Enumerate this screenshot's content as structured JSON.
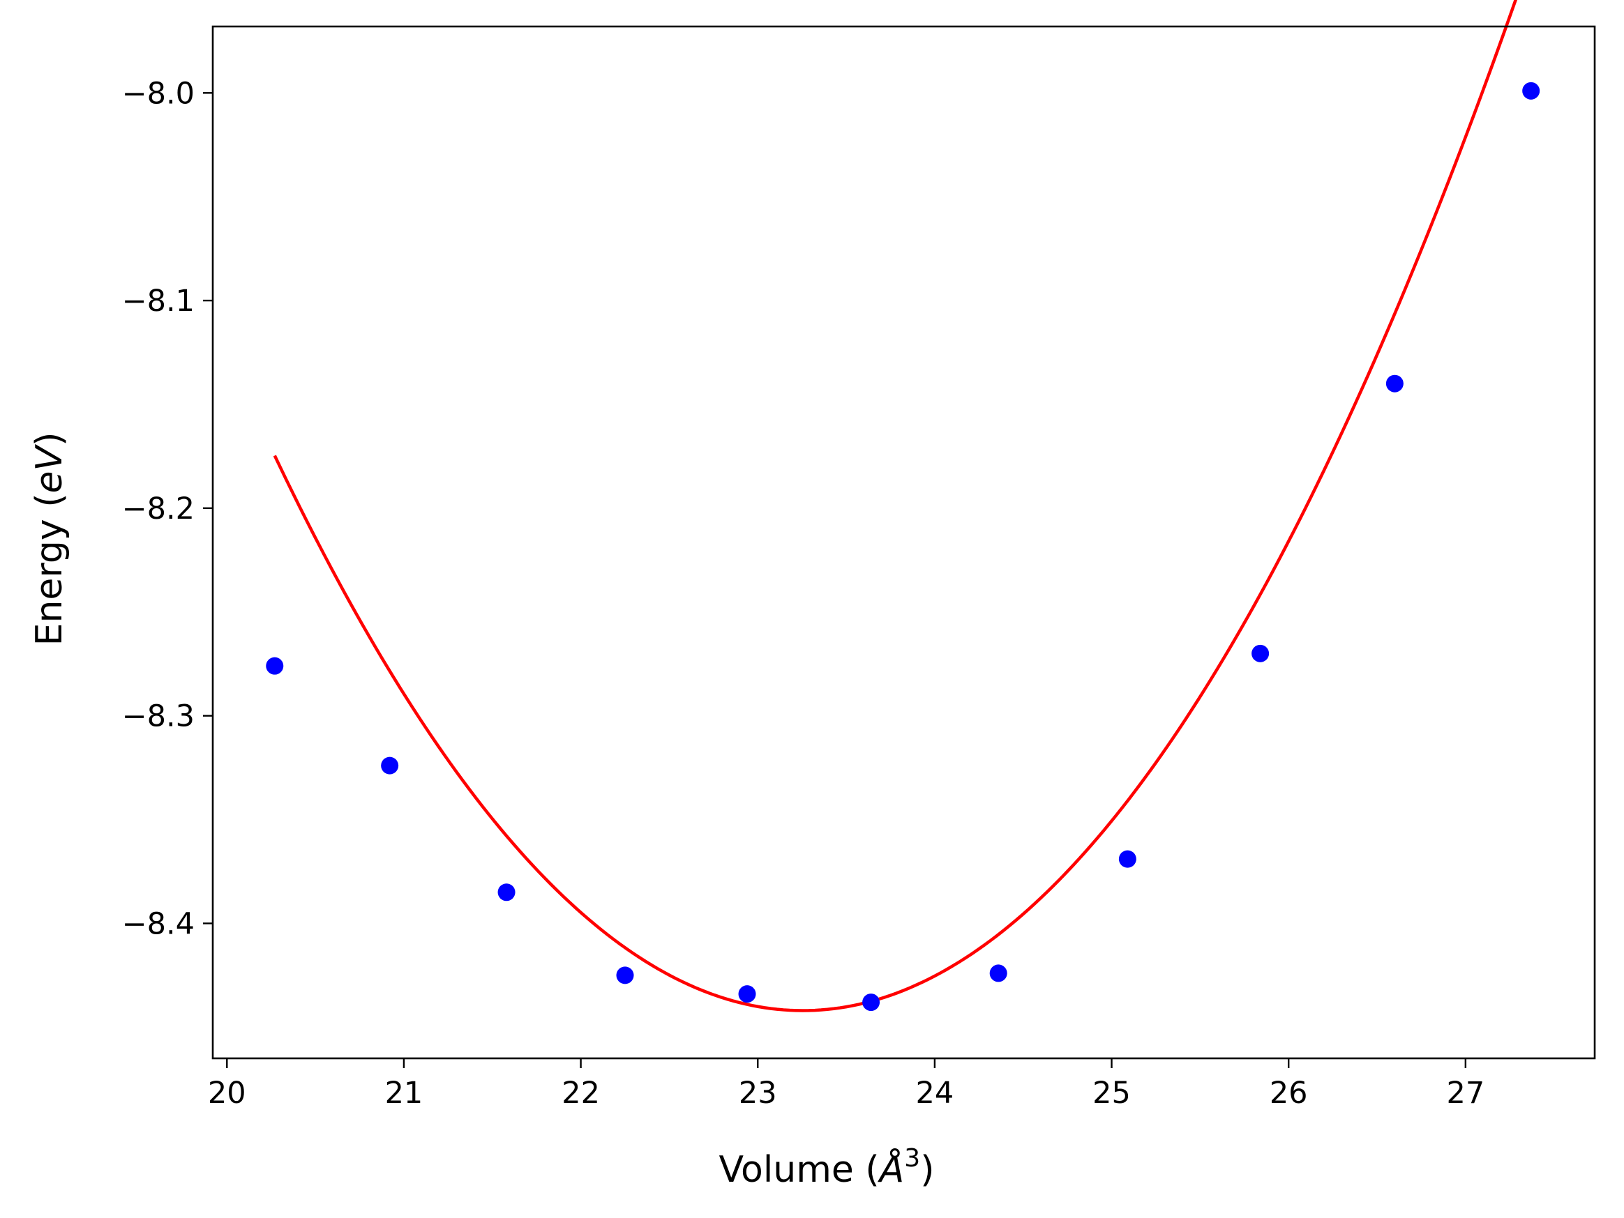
{
  "chart_data": {
    "type": "scatter",
    "title": "",
    "xlabel": {
      "prefix": "Volume (",
      "symbol": "Å",
      "sup": "3",
      "suffix": ")"
    },
    "ylabel": {
      "prefix": "Energy (",
      "italic": "eV",
      "suffix": ")"
    },
    "xlim": [
      19.92,
      27.73
    ],
    "ylim": [
      -8.465,
      -7.968
    ],
    "x_ticks": [
      20,
      21,
      22,
      23,
      24,
      25,
      26,
      27
    ],
    "x_tick_labels": [
      "20",
      "21",
      "22",
      "23",
      "24",
      "25",
      "26",
      "27"
    ],
    "y_ticks": [
      -8.0,
      -8.1,
      -8.2,
      -8.3,
      -8.4
    ],
    "y_tick_labels": [
      "−8.0",
      "−8.1",
      "−8.2",
      "−8.3",
      "−8.4"
    ],
    "grid": false,
    "legend": "none",
    "series": [
      {
        "kind": "scatter",
        "color": "#0000ff",
        "x": [
          20.27,
          20.92,
          21.58,
          22.25,
          22.94,
          23.64,
          24.36,
          25.09,
          25.84,
          26.6,
          27.37
        ],
        "y": [
          -8.276,
          -8.324,
          -8.385,
          -8.425,
          -8.434,
          -8.438,
          -8.424,
          -8.369,
          -8.27,
          -8.14,
          -7.999
        ]
      },
      {
        "kind": "line",
        "color": "#ff0000",
        "fit": {
          "form": "quadratic",
          "a": 0.03,
          "x0": 23.255,
          "y0": -8.442,
          "x_from": 20.27,
          "x_to": 27.37
        }
      }
    ]
  }
}
